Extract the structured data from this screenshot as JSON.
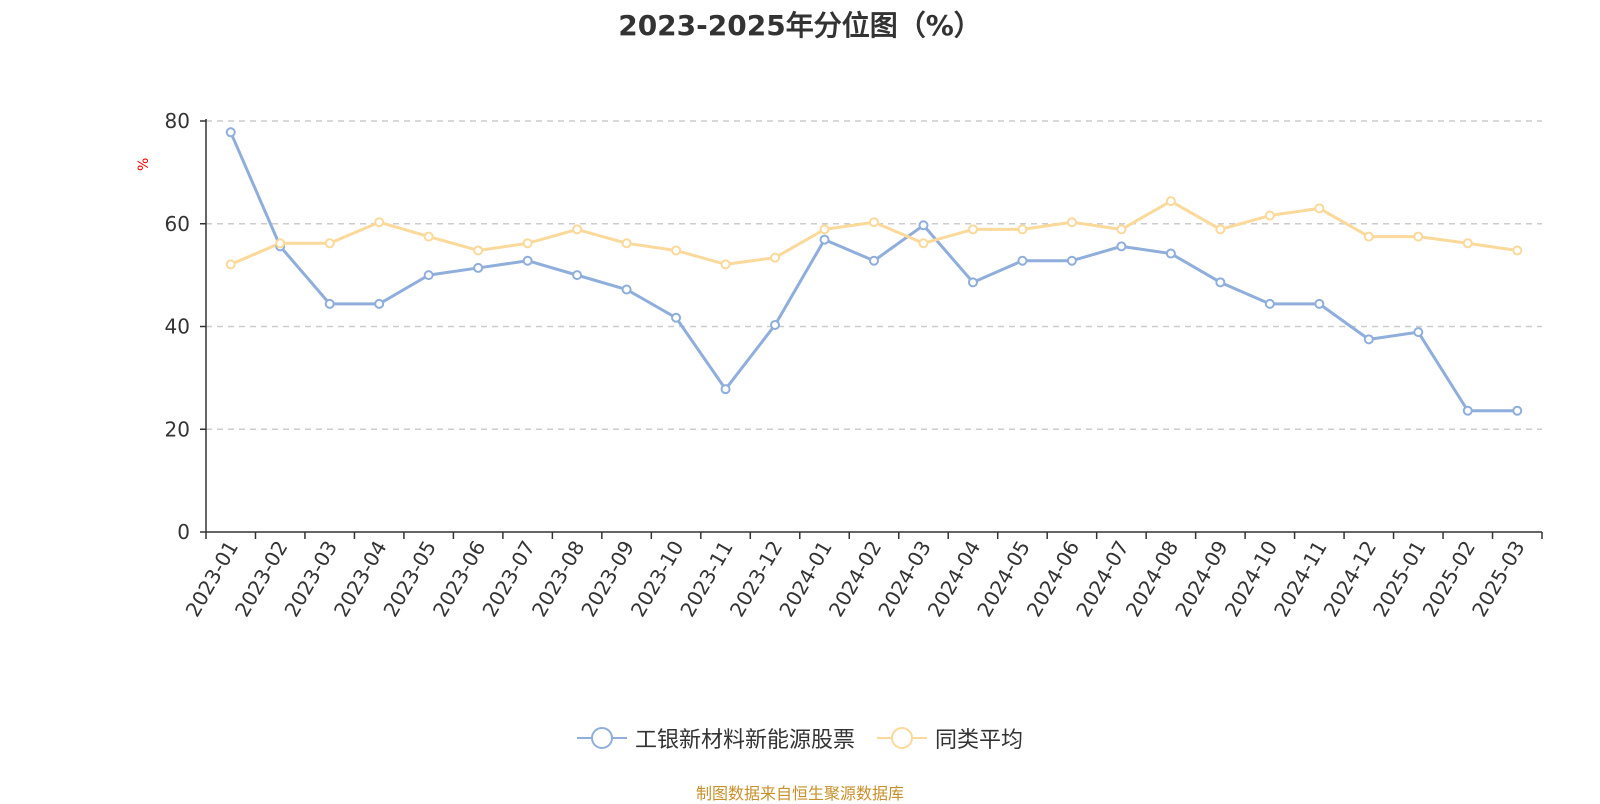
{
  "chart_data": {
    "type": "line",
    "title": "2023-2025年分位图（%）",
    "ylabel": "%",
    "xlabel": "",
    "ylim": [
      0,
      80
    ],
    "yticks": [
      0,
      20,
      40,
      60,
      80
    ],
    "grid": true,
    "legend_position": "bottom-center",
    "categories": [
      "2023-01",
      "2023-02",
      "2023-03",
      "2023-04",
      "2023-05",
      "2023-06",
      "2023-07",
      "2023-08",
      "2023-09",
      "2023-10",
      "2023-11",
      "2023-12",
      "2024-01",
      "2024-02",
      "2024-03",
      "2024-04",
      "2024-05",
      "2024-06",
      "2024-07",
      "2024-08",
      "2024-09",
      "2024-10",
      "2024-11",
      "2024-12",
      "2025-01",
      "2025-02",
      "2025-03"
    ],
    "series": [
      {
        "name": "工银新材料新能源股票",
        "color": "#8FAEDB",
        "values": [
          77.8,
          55.6,
          44.4,
          44.4,
          50.0,
          51.4,
          52.8,
          50.0,
          47.2,
          41.7,
          27.8,
          40.3,
          56.9,
          52.8,
          59.7,
          48.6,
          52.8,
          52.8,
          55.6,
          54.2,
          48.6,
          44.4,
          44.4,
          37.5,
          38.9,
          23.6,
          23.6
        ]
      },
      {
        "name": "同类平均",
        "color": "#FAD99A",
        "values": [
          52.1,
          56.2,
          56.2,
          60.3,
          57.5,
          54.8,
          56.2,
          58.9,
          56.2,
          54.8,
          52.1,
          53.4,
          58.9,
          60.3,
          56.2,
          58.9,
          58.9,
          60.3,
          58.9,
          64.4,
          58.9,
          61.6,
          63.0,
          57.5,
          57.5,
          56.2,
          54.8
        ]
      }
    ]
  },
  "source_text": "制图数据来自恒生聚源数据库",
  "colors": {
    "axis": "#333333",
    "grid": "#cccccc",
    "ylabel": "#ff0000",
    "source": "#c8902a"
  }
}
